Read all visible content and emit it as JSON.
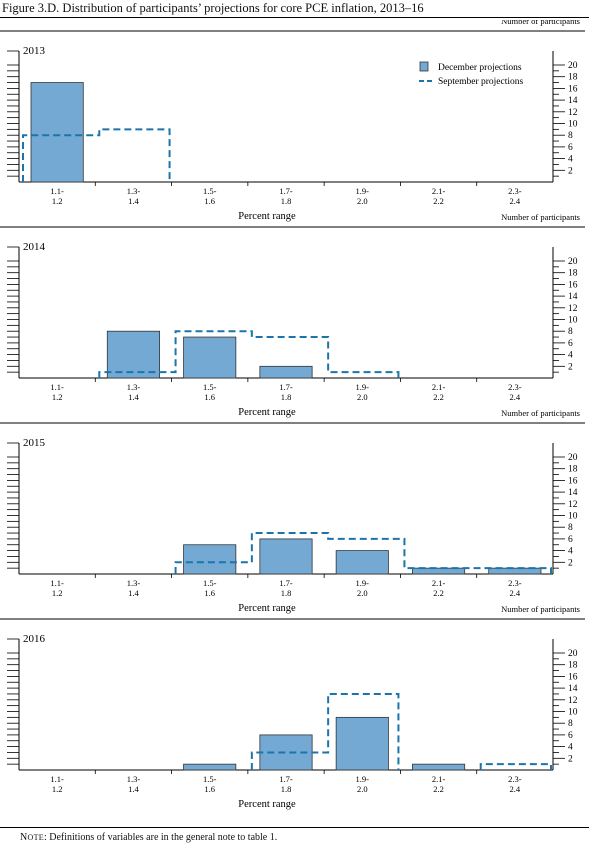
{
  "figure": {
    "title": "Figure 3.D. Distribution of participants’ projections for core PCE inflation, 2013–16",
    "note_prefix": "Note",
    "note_text": ": Definitions of variables are in the general note to table 1."
  },
  "chart_data": [
    {
      "type": "bar",
      "panel_label": "2013",
      "categories": [
        "1.1-\n1.2",
        "1.3-\n1.4",
        "1.5-\n1.6",
        "1.7-\n1.8",
        "1.9-\n2.0",
        "2.1-\n2.2",
        "2.3-\n2.4"
      ],
      "series": [
        {
          "name": "December projections",
          "style": "bar",
          "values": [
            17,
            0,
            0,
            0,
            0,
            0,
            0
          ]
        },
        {
          "name": "September projections",
          "style": "dashed-step",
          "values": [
            8,
            9,
            0,
            0,
            0,
            0,
            0
          ]
        }
      ],
      "xlabel": "Percent range",
      "ylabel": "Number of participants",
      "ylim": [
        0,
        20
      ],
      "yticks": [
        2,
        4,
        6,
        8,
        10,
        12,
        14,
        16,
        18,
        20
      ],
      "legend": "top-right"
    },
    {
      "type": "bar",
      "panel_label": "2014",
      "categories": [
        "1.1-\n1.2",
        "1.3-\n1.4",
        "1.5-\n1.6",
        "1.7-\n1.8",
        "1.9-\n2.0",
        "2.1-\n2.2",
        "2.3-\n2.4"
      ],
      "series": [
        {
          "name": "December projections",
          "style": "bar",
          "values": [
            0,
            8,
            7,
            2,
            0,
            0,
            0
          ]
        },
        {
          "name": "September projections",
          "style": "dashed-step",
          "values": [
            0,
            1,
            8,
            7,
            1,
            0,
            0
          ]
        }
      ],
      "xlabel": "Percent range",
      "ylabel": "Number of participants",
      "ylim": [
        0,
        20
      ],
      "yticks": [
        2,
        4,
        6,
        8,
        10,
        12,
        14,
        16,
        18,
        20
      ]
    },
    {
      "type": "bar",
      "panel_label": "2015",
      "categories": [
        "1.1-\n1.2",
        "1.3-\n1.4",
        "1.5-\n1.6",
        "1.7-\n1.8",
        "1.9-\n2.0",
        "2.1-\n2.2",
        "2.3-\n2.4"
      ],
      "series": [
        {
          "name": "December projections",
          "style": "bar",
          "values": [
            0,
            0,
            5,
            6,
            4,
            1,
            1
          ]
        },
        {
          "name": "September projections",
          "style": "dashed-step",
          "values": [
            0,
            0,
            2,
            7,
            6,
            1,
            1
          ]
        }
      ],
      "xlabel": "Percent range",
      "ylabel": "Number of participants",
      "ylim": [
        0,
        20
      ],
      "yticks": [
        2,
        4,
        6,
        8,
        10,
        12,
        14,
        16,
        18,
        20
      ]
    },
    {
      "type": "bar",
      "panel_label": "2016",
      "categories": [
        "1.1-\n1.2",
        "1.3-\n1.4",
        "1.5-\n1.6",
        "1.7-\n1.8",
        "1.9-\n2.0",
        "2.1-\n2.2",
        "2.3-\n2.4"
      ],
      "series": [
        {
          "name": "December projections",
          "style": "bar",
          "values": [
            0,
            0,
            1,
            6,
            9,
            1,
            0
          ]
        },
        {
          "name": "September projections",
          "style": "dashed-step",
          "values": [
            0,
            0,
            0,
            3,
            13,
            0,
            1
          ]
        }
      ],
      "xlabel": "Percent range",
      "ylabel": "Number of participants",
      "ylim": [
        0,
        20
      ],
      "yticks": [
        2,
        4,
        6,
        8,
        10,
        12,
        14,
        16,
        18,
        20
      ]
    }
  ],
  "colors": {
    "bar_fill": "#74a9d4",
    "bar_stroke": "#333333",
    "dashed_line": "#1b75ab",
    "axis": "#000000"
  }
}
